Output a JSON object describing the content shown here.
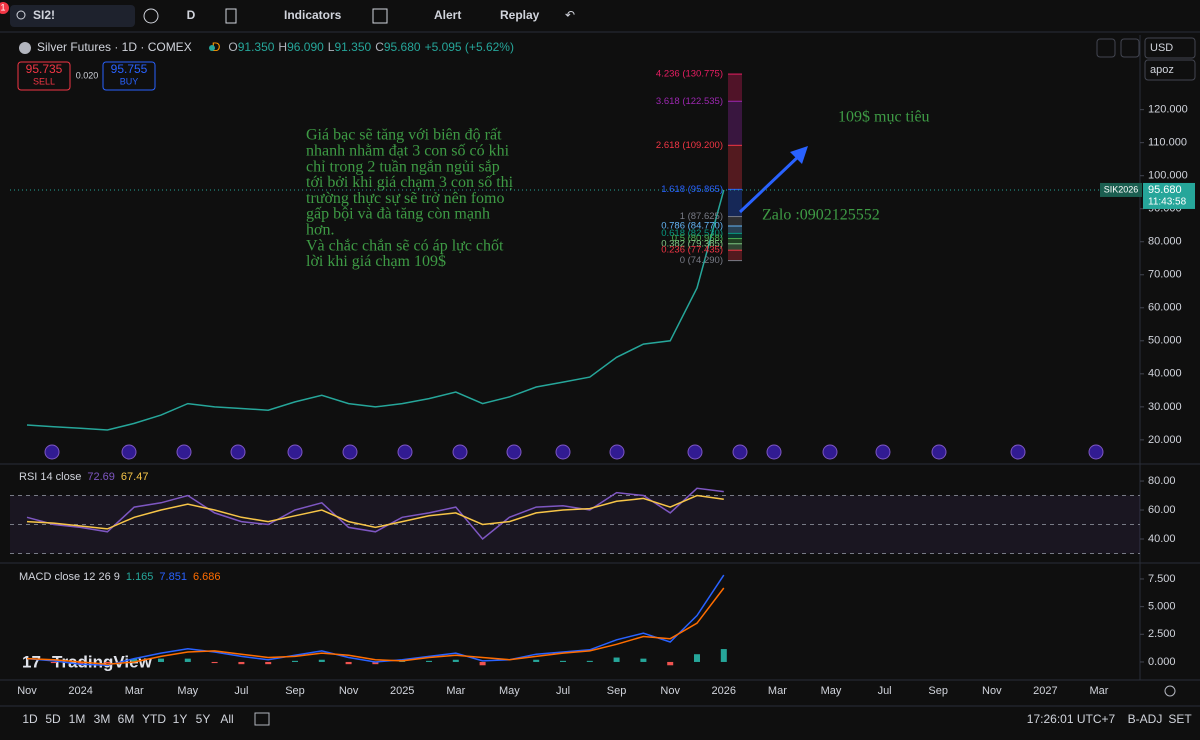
{
  "toolbar": {
    "notifications": "1",
    "symbol": "SI2!",
    "interval": "D",
    "indicators": "Indicators",
    "alert": "Alert",
    "replay": "Replay",
    "currency": "USD",
    "unit": "apoz"
  },
  "legend": {
    "title": "Silver Futures · 1D · COMEX",
    "status": "D",
    "ohlc": [
      {
        "key": "O",
        "value": "91.350"
      },
      {
        "key": "H",
        "value": "96.090"
      },
      {
        "key": "L",
        "value": "91.350"
      },
      {
        "key": "C",
        "value": "95.680"
      }
    ],
    "change": "+5.095 (+5.62%)"
  },
  "trade": {
    "sell_price": "95.735",
    "sell": "SELL",
    "spread": "0.020",
    "buy_price": "95.755",
    "buy": "BUY"
  },
  "annotations": {
    "note_lines": [
      "Giá bạc sẽ tăng với biên độ rất",
      "nhanh nhằm đạt 3 con số có khi",
      "chỉ trong 2 tuần ngắn ngủi sắp",
      "tới bởi khi giá chạm 3 con số thị",
      "trường thực sự sẽ trở nên fomo",
      "gấp bội và đà tăng còn mạnh",
      "hơn.",
      "Và chắc chắn sẽ có áp  lực chốt",
      "lời khi giá chạm 109$"
    ],
    "target": "109$ mục tiêu",
    "contact": "Zalo :0902125552",
    "watermark": "TradingView"
  },
  "chart_data": [
    {
      "type": "line",
      "categories": [
        "Nov",
        null,
        "2024",
        null,
        "Mar",
        null,
        "May",
        null,
        "Jul",
        null,
        "Sep",
        null,
        "Nov",
        null,
        "2025",
        null,
        "Mar",
        null,
        "May",
        null,
        "Jul",
        null,
        "Sep",
        null,
        "Nov",
        null,
        "2026",
        null,
        "Mar",
        null,
        "May",
        null,
        "Jul",
        null,
        "Sep",
        null,
        "Nov",
        null,
        "2027",
        null,
        "Mar"
      ],
      "series": [
        {
          "color": "#26a69a",
          "values": [
            24.5,
            24,
            23.5,
            23,
            25,
            27.5,
            31,
            30,
            29.5,
            29,
            31.5,
            33.5,
            31,
            30,
            31,
            32.5,
            34.5,
            31,
            33,
            36,
            37.5,
            39,
            45,
            49,
            50,
            66,
            95.68,
            null,
            null,
            null,
            null,
            null,
            null,
            null,
            null,
            null,
            null,
            null,
            null,
            null,
            null
          ]
        }
      ],
      "ylim": [
        13.3,
        142
      ],
      "yticks": [
        {
          "value": 20,
          "label": "20.000"
        },
        {
          "value": 30,
          "label": "30.000"
        },
        {
          "value": 40,
          "label": "40.000"
        },
        {
          "value": 50,
          "label": "50.000"
        },
        {
          "value": 60,
          "label": "60.000"
        },
        {
          "value": 70,
          "label": "70.000"
        },
        {
          "value": 80,
          "label": "80.000"
        },
        {
          "value": 90,
          "label": "90.000"
        },
        {
          "value": 100,
          "label": "100.000"
        },
        {
          "value": 110,
          "label": "110.000"
        },
        {
          "value": 120,
          "label": "120.000"
        }
      ],
      "last_price": {
        "symbol": "SIK2026",
        "price": {
          "value": 95.68,
          "label": "95.680"
        },
        "countdown": "11:43:58",
        "color": "#26a69a"
      },
      "fib_levels": [
        {
          "value": 130.775,
          "label": "4.236 (130.775)",
          "color": "#e91e63"
        },
        {
          "value": 122.535,
          "label": "3.618 (122.535)",
          "color": "#9c27b0"
        },
        {
          "value": 109.2,
          "label": "2.618 (109.200)",
          "color": "#f23645"
        },
        {
          "value": 95.865,
          "label": "1.618 (95.865)",
          "color": "#2962ff"
        },
        {
          "value": 87.625,
          "label": "1 (87.625)",
          "color": "#787b86"
        },
        {
          "value": 84.77,
          "label": "0.786 (84.770)",
          "color": "#64b5f6"
        },
        {
          "value": 82.53,
          "label": "0.618 (82.530)",
          "color": "#089981"
        },
        {
          "value": 80.958,
          "label": "0.5 (80.958)",
          "color": "#4caf50"
        },
        {
          "value": 79.385,
          "label": "0.382 (79.385)",
          "color": "#81c784"
        },
        {
          "value": 77.435,
          "label": "0.236 (77.435)",
          "color": "#f23645"
        },
        {
          "value": 74.29,
          "label": "0 (74.290)",
          "color": "#787b86"
        }
      ]
    },
    {
      "type": "line",
      "title": "RSI 14 close",
      "series": [
        {
          "color": "#7e57c2",
          "legend_value": "72.69",
          "values": [
            55,
            50,
            48,
            45,
            62,
            65,
            70,
            58,
            52,
            50,
            60,
            65,
            48,
            45,
            55,
            58,
            62,
            40,
            55,
            62,
            63,
            60,
            72,
            70,
            58,
            75,
            72.69,
            null,
            null,
            null,
            null,
            null,
            null,
            null,
            null,
            null,
            null,
            null,
            null,
            null,
            null
          ]
        },
        {
          "color": "#f7c548",
          "legend_value": "67.47",
          "values": [
            52,
            51,
            49,
            47,
            55,
            60,
            64,
            60,
            55,
            52,
            56,
            60,
            52,
            48,
            52,
            56,
            58,
            50,
            52,
            58,
            60,
            61,
            66,
            68,
            62,
            70,
            67.47,
            null,
            null,
            null,
            null,
            null,
            null,
            null,
            null,
            null,
            null,
            null,
            null,
            null,
            null
          ]
        }
      ],
      "ylim": [
        25.5,
        89.7
      ],
      "yticks": [
        {
          "value": 40,
          "label": "40.00"
        },
        {
          "value": 60,
          "label": "60.00"
        },
        {
          "value": 80,
          "label": "80.00"
        }
      ],
      "bands": [
        70,
        50,
        30
      ]
    },
    {
      "type": "line",
      "title": "MACD close 12 26 9",
      "histogram": {
        "legend_value": "1.165",
        "colors": [
          "#26a69a",
          "#ef5350"
        ],
        "values": [
          0,
          -0.1,
          -0.2,
          -0.1,
          0.3,
          0.3,
          0.3,
          -0.1,
          -0.2,
          -0.2,
          0.1,
          0.2,
          -0.2,
          -0.2,
          0.1,
          0.1,
          0.2,
          -0.3,
          0,
          0.2,
          0.1,
          0.1,
          0.4,
          0.3,
          -0.3,
          0.7,
          1.165,
          null,
          null,
          null,
          null,
          null,
          null,
          null,
          null,
          null,
          null,
          null,
          null,
          null,
          null
        ]
      },
      "series": [
        {
          "color": "#2962ff",
          "legend_value": "7.851",
          "values": [
            0.3,
            0.1,
            -0.2,
            -0.3,
            0.3,
            0.8,
            1.2,
            0.9,
            0.5,
            0.2,
            0.6,
            1.0,
            0.4,
            0.0,
            0.2,
            0.5,
            0.8,
            0.1,
            0.2,
            0.7,
            0.9,
            1.1,
            2.0,
            2.6,
            1.8,
            4.2,
            7.851,
            null,
            null,
            null,
            null,
            null,
            null,
            null,
            null,
            null,
            null,
            null,
            null,
            null,
            null
          ]
        },
        {
          "color": "#ff6d00",
          "legend_value": "6.686",
          "values": [
            0.3,
            0.2,
            0.0,
            -0.2,
            0.0,
            0.5,
            0.9,
            1.0,
            0.7,
            0.4,
            0.5,
            0.8,
            0.6,
            0.2,
            0.1,
            0.4,
            0.6,
            0.4,
            0.2,
            0.5,
            0.8,
            1.0,
            1.6,
            2.3,
            2.1,
            3.5,
            6.686,
            null,
            null,
            null,
            null,
            null,
            null,
            null,
            null,
            null,
            null,
            null,
            null,
            null,
            null
          ]
        }
      ],
      "ylim": [
        -1.63,
        8.58
      ],
      "yticks": [
        {
          "value": 0,
          "label": "0.000"
        },
        {
          "value": 2.5,
          "label": "2.500"
        },
        {
          "value": 5,
          "label": "5.000"
        },
        {
          "value": 7.5,
          "label": "7.500"
        }
      ]
    }
  ],
  "bottom_bar": {
    "ranges": [
      "1D",
      "5D",
      "1M",
      "3M",
      "6M",
      "YTD",
      "1Y",
      "5Y",
      "All"
    ],
    "clock": "17:26:01 UTC+7",
    "adjust": "B-ADJ",
    "session": "SET"
  }
}
